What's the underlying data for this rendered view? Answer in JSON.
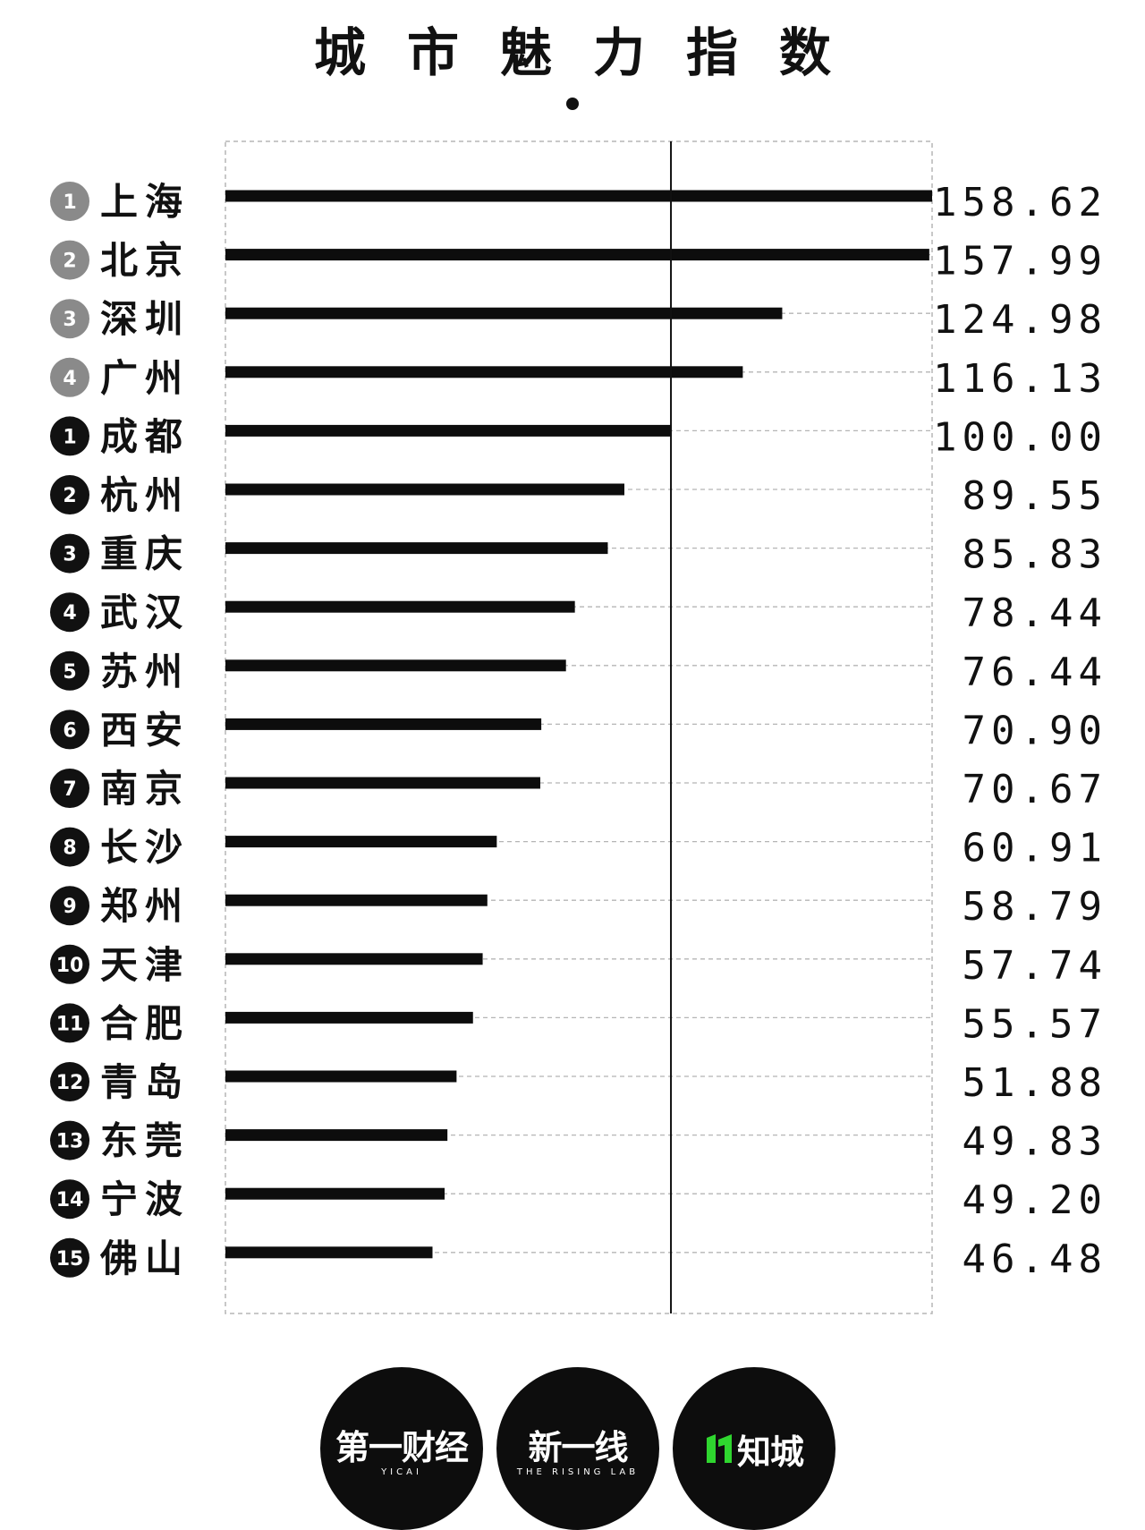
{
  "chart_data": {
    "type": "bar",
    "orientation": "horizontal",
    "title": "城市魅力指数",
    "xlim": [
      0,
      158.62
    ],
    "reference_value": 100,
    "grid": true,
    "rank_group_colors": {
      "top": "#8a8a8a",
      "second": "#111111"
    },
    "rows": [
      {
        "rank": "1",
        "group": "top",
        "city": "上海",
        "value": 158.62,
        "label": "158.62"
      },
      {
        "rank": "2",
        "group": "top",
        "city": "北京",
        "value": 157.99,
        "label": "157.99"
      },
      {
        "rank": "3",
        "group": "top",
        "city": "深圳",
        "value": 124.98,
        "label": "124.98"
      },
      {
        "rank": "4",
        "group": "top",
        "city": "广州",
        "value": 116.13,
        "label": "116.13"
      },
      {
        "rank": "1",
        "group": "second",
        "city": "成都",
        "value": 100.0,
        "label": "100.00"
      },
      {
        "rank": "2",
        "group": "second",
        "city": "杭州",
        "value": 89.55,
        "label": "89.55"
      },
      {
        "rank": "3",
        "group": "second",
        "city": "重庆",
        "value": 85.83,
        "label": "85.83"
      },
      {
        "rank": "4",
        "group": "second",
        "city": "武汉",
        "value": 78.44,
        "label": "78.44"
      },
      {
        "rank": "5",
        "group": "second",
        "city": "苏州",
        "value": 76.44,
        "label": "76.44"
      },
      {
        "rank": "6",
        "group": "second",
        "city": "西安",
        "value": 70.9,
        "label": "70.90"
      },
      {
        "rank": "7",
        "group": "second",
        "city": "南京",
        "value": 70.67,
        "label": "70.67"
      },
      {
        "rank": "8",
        "group": "second",
        "city": "长沙",
        "value": 60.91,
        "label": "60.91"
      },
      {
        "rank": "9",
        "group": "second",
        "city": "郑州",
        "value": 58.79,
        "label": "58.79"
      },
      {
        "rank": "10",
        "group": "second",
        "city": "天津",
        "value": 57.74,
        "label": "57.74"
      },
      {
        "rank": "11",
        "group": "second",
        "city": "合肥",
        "value": 55.57,
        "label": "55.57"
      },
      {
        "rank": "12",
        "group": "second",
        "city": "青岛",
        "value": 51.88,
        "label": "51.88"
      },
      {
        "rank": "13",
        "group": "second",
        "city": "东莞",
        "value": 49.83,
        "label": "49.83"
      },
      {
        "rank": "14",
        "group": "second",
        "city": "宁波",
        "value": 49.2,
        "label": "49.20"
      },
      {
        "rank": "15",
        "group": "second",
        "city": "佛山",
        "value": 46.48,
        "label": "46.48"
      }
    ]
  },
  "logos": [
    {
      "name": "第一财经",
      "text": "第一财经",
      "sub": "YICAI"
    },
    {
      "name": "新一线",
      "text": "新一线",
      "sub": "THE RISING LAB"
    },
    {
      "name": "知城",
      "text": "知城",
      "sub": ""
    }
  ],
  "colors": {
    "accent_green": "#2fd62f",
    "bar": "#0d0d0d",
    "grid": "#b5b5b5"
  }
}
